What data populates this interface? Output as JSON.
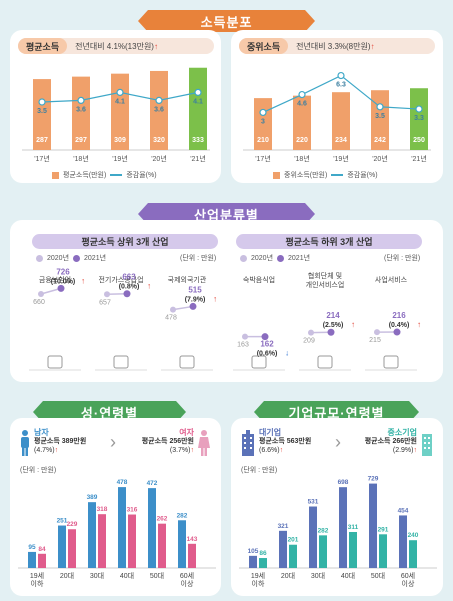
{
  "sections": {
    "income": "소득분포",
    "industry": "산업분류별",
    "gender_age": "성·연령별",
    "company_age": "기업규모·연령별"
  },
  "avg_panel": {
    "tag": "평균소득",
    "note_prefix": "전년대비 4.1%(13만원)",
    "up": "↑",
    "legend_bar": "평균소득(만원)",
    "legend_line": "증감율(%)"
  },
  "med_panel": {
    "tag": "중위소득",
    "note_prefix": "전년대비 3.3%(8만원)",
    "up": "↑",
    "legend_bar": "중위소득(만원)",
    "legend_line": "증감율(%)"
  },
  "industry": {
    "top_title": "평균소득 상위 3개 산업",
    "bottom_title": "평균소득 하위 3개 산업",
    "legend_2020": "2020년",
    "legend_2021": "2021년",
    "unit": "(단위 : 만원)"
  },
  "gender": {
    "male_label": "남자",
    "male_text": "평균소득 389만원",
    "male_rate": "(4.7%)",
    "female_label": "여자",
    "female_text": "평균소득 256만원",
    "female_rate": "(3.7%)",
    "unit": "(단위 : 만원)",
    "arrow": "↑"
  },
  "company": {
    "large_label": "대기업",
    "large_text": "평균소득 563만원",
    "large_rate": "(6.6%)",
    "small_label": "중소기업",
    "small_text": "평균소득 266만원",
    "small_rate": "(2.9%)",
    "unit": "(단위 : 만원)",
    "arrow": "↑"
  },
  "colors": {
    "orange": "#f0a06a",
    "green": "#7cc04a",
    "teal": "#3fa8c8",
    "purple": "#8a6cbf",
    "blue_bar": "#3c8fc9",
    "pink_bar": "#e05c8c",
    "navy_bar": "#5b72b8",
    "teal_bar": "#33b3a6"
  },
  "chart_data": [
    {
      "type": "bar",
      "title": "평균소득",
      "categories": [
        "'17년",
        "'18년",
        "'19년",
        "'20년",
        "'21년"
      ],
      "series": [
        {
          "name": "평균소득(만원)",
          "values": [
            287,
            297,
            309,
            320,
            333
          ]
        },
        {
          "name": "증감율(%)",
          "values": [
            3.5,
            3.6,
            4.1,
            3.6,
            4.1
          ]
        }
      ]
    },
    {
      "type": "bar",
      "title": "중위소득",
      "categories": [
        "'17년",
        "'18년",
        "'19년",
        "'20년",
        "'21년"
      ],
      "series": [
        {
          "name": "중위소득(만원)",
          "values": [
            210,
            220,
            234,
            242,
            250
          ]
        },
        {
          "name": "증감율(%)",
          "values": [
            3.0,
            4.6,
            6.3,
            3.5,
            3.3
          ]
        }
      ]
    },
    {
      "type": "line",
      "title": "평균소득 상위 3개 산업",
      "categories": [
        "금융보험업",
        "전기가스공급업",
        "국제외국기관"
      ],
      "series": [
        {
          "name": "2020년",
          "values": [
            660,
            657,
            478
          ]
        },
        {
          "name": "2021년",
          "values": [
            726,
            663,
            515
          ]
        }
      ],
      "rates": [
        "(10.0%)",
        "(0.8%)",
        "(7.9%)"
      ],
      "directions": [
        "↑",
        "↑",
        "↑"
      ]
    },
    {
      "type": "line",
      "title": "평균소득 하위 3개 산업",
      "categories": [
        "숙박음식업",
        "협회단체 및\n개인서비스업",
        "사업서비스"
      ],
      "series": [
        {
          "name": "2020년",
          "values": [
            163,
            209,
            215
          ]
        },
        {
          "name": "2021년",
          "values": [
            162,
            214,
            216
          ]
        }
      ],
      "rates": [
        "(0.6%)",
        "(2.5%)",
        "(0.4%)"
      ],
      "directions": [
        "↓",
        "↑",
        "↑"
      ]
    },
    {
      "type": "bar",
      "title": "성·연령별",
      "categories": [
        "19세\n이하",
        "20대",
        "30대",
        "40대",
        "50대",
        "60세\n이상"
      ],
      "series": [
        {
          "name": "남자",
          "values": [
            95,
            251,
            389,
            478,
            472,
            282
          ]
        },
        {
          "name": "여자",
          "values": [
            84,
            229,
            318,
            316,
            262,
            143
          ]
        }
      ]
    },
    {
      "type": "bar",
      "title": "기업규모·연령별",
      "categories": [
        "19세\n이하",
        "20대",
        "30대",
        "40대",
        "50대",
        "60세\n이상"
      ],
      "series": [
        {
          "name": "대기업",
          "values": [
            105,
            321,
            531,
            698,
            729,
            454
          ]
        },
        {
          "name": "중소기업",
          "values": [
            86,
            201,
            282,
            311,
            291,
            240
          ]
        }
      ]
    }
  ]
}
